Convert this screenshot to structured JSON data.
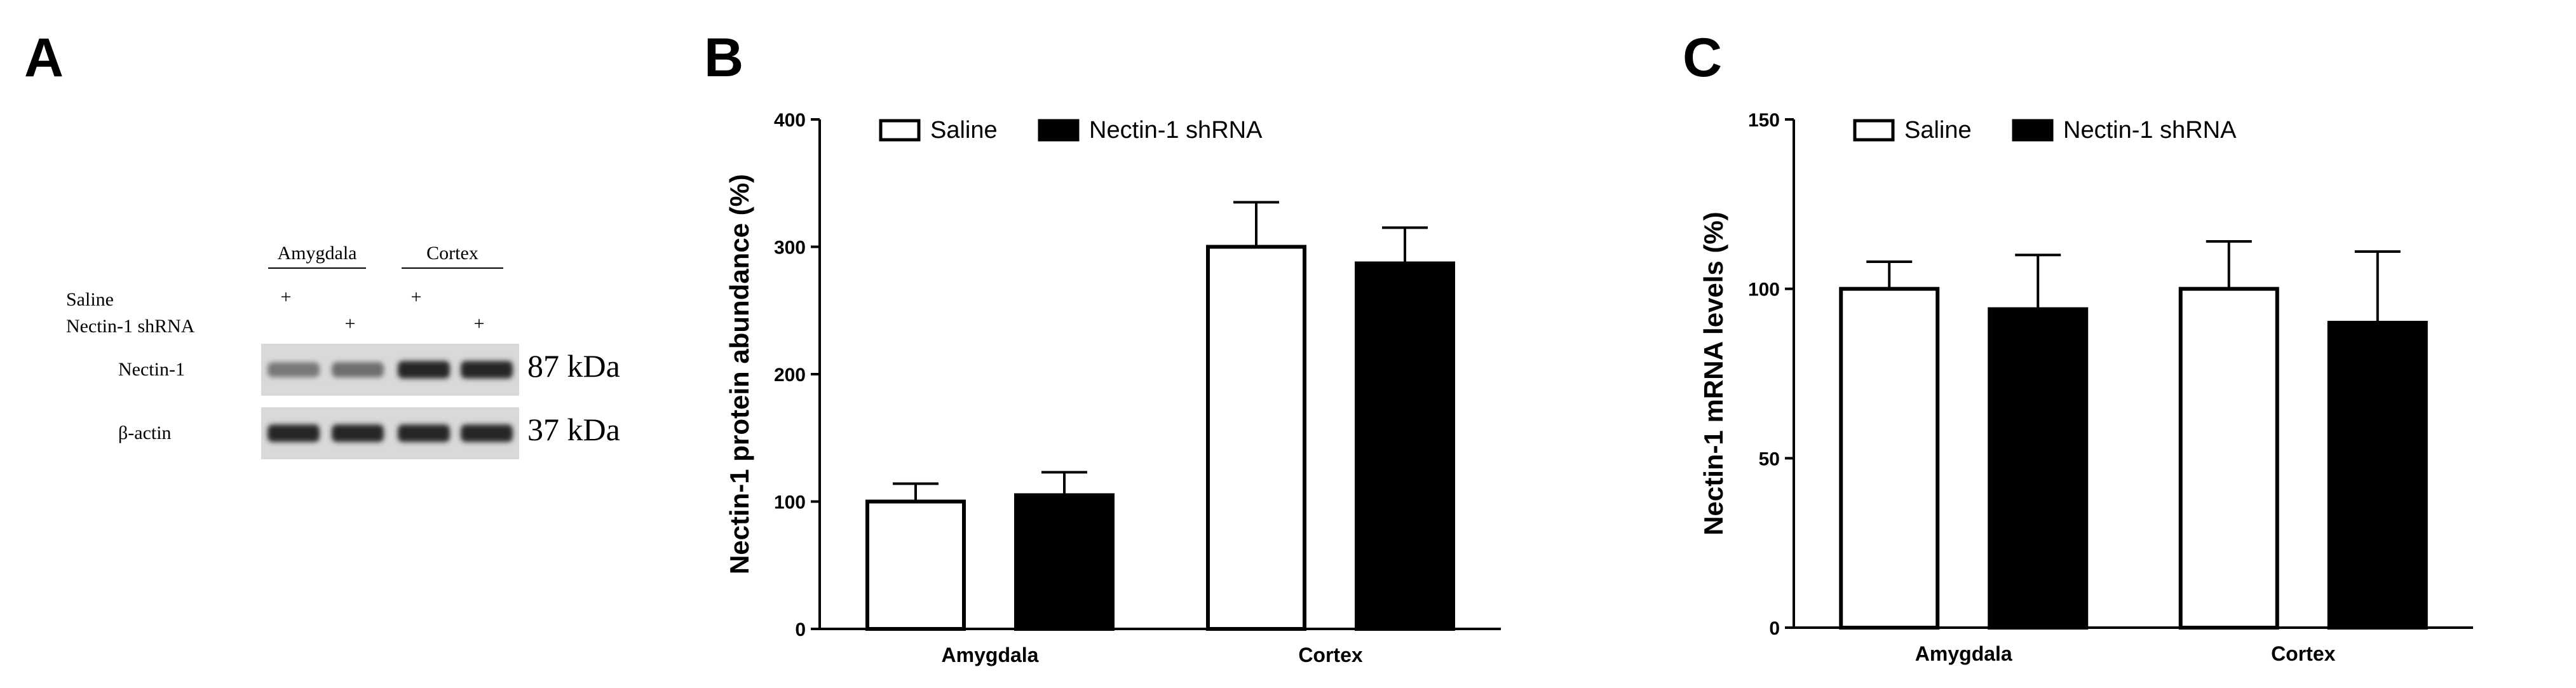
{
  "panels": {
    "a": {
      "letter": "A",
      "groups": [
        {
          "label": "Amygdala"
        },
        {
          "label": "Cortex"
        }
      ],
      "rows": [
        {
          "label": "Saline",
          "marks": [
            "+",
            "",
            "+",
            ""
          ]
        },
        {
          "label": "Nectin-1 shRNA",
          "marks": [
            "",
            "+",
            "",
            "+"
          ]
        }
      ],
      "blots": [
        {
          "label": "Nectin-1",
          "size": "87 kDa",
          "intensities": [
            0.55,
            0.6,
            0.95,
            0.95
          ]
        },
        {
          "label": "β-actin",
          "size": "37 kDa",
          "intensities": [
            0.95,
            0.95,
            0.95,
            0.95
          ]
        }
      ]
    },
    "b": {
      "letter": "B"
    },
    "c": {
      "letter": "C"
    }
  },
  "chart_data": [
    {
      "type": "bar",
      "panel": "B",
      "categories": [
        "Amygdala",
        "Cortex"
      ],
      "series": [
        {
          "name": "Saline",
          "values": [
            100,
            300
          ],
          "errors": [
            14,
            35
          ],
          "color": "#ffffff"
        },
        {
          "name": "Nectin-1 shRNA",
          "values": [
            105,
            287
          ],
          "errors": [
            18,
            28
          ],
          "color": "#000000"
        }
      ],
      "ylabel": "Nectin-1 protein abundance (%)",
      "ylim": [
        0,
        400
      ],
      "yticks": [
        0,
        100,
        200,
        300,
        400
      ],
      "legend_position": "top-left"
    },
    {
      "type": "bar",
      "panel": "C",
      "categories": [
        "Amygdala",
        "Cortex"
      ],
      "series": [
        {
          "name": "Saline",
          "values": [
            100,
            100
          ],
          "errors": [
            8,
            14
          ],
          "color": "#ffffff"
        },
        {
          "name": "Nectin-1 shRNA",
          "values": [
            94,
            90
          ],
          "errors": [
            16,
            21
          ],
          "color": "#000000"
        }
      ],
      "ylabel": "Nectin-1 mRNA levels (%)",
      "ylim": [
        0,
        150
      ],
      "yticks": [
        0,
        50,
        100,
        150
      ],
      "legend_position": "top-left"
    }
  ]
}
